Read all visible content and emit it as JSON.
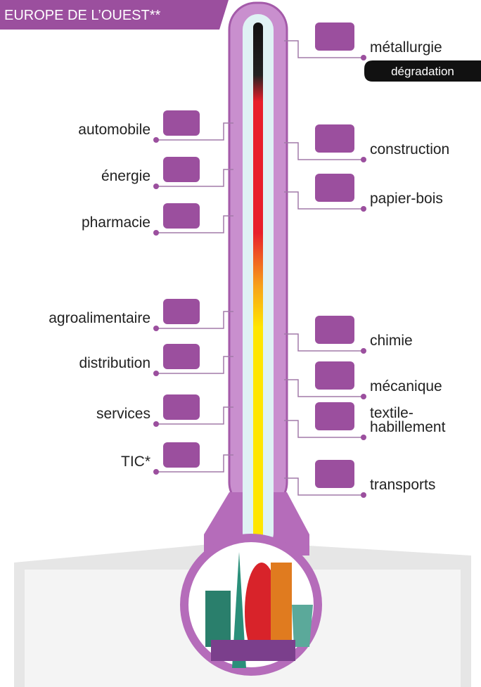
{
  "header": {
    "title": "EUROPE DE L’OUEST**"
  },
  "scale": {
    "label": "dégradation"
  },
  "left_sectors": [
    {
      "lines": [
        "automobile"
      ]
    },
    {
      "lines": [
        "énergie"
      ]
    },
    {
      "lines": [
        "pharmacie"
      ]
    },
    {
      "lines": [
        "agroalimentaire"
      ]
    },
    {
      "lines": [
        "distribution"
      ]
    },
    {
      "lines": [
        "services"
      ]
    },
    {
      "lines": [
        "TIC*"
      ]
    }
  ],
  "right_sectors": [
    {
      "lines": [
        "métallurgie"
      ]
    },
    {
      "lines": [
        "construction"
      ]
    },
    {
      "lines": [
        "papier-bois"
      ]
    },
    {
      "lines": [
        "chimie"
      ]
    },
    {
      "lines": [
        "mécanique"
      ]
    },
    {
      "lines": [
        "textile-",
        "habillement"
      ]
    },
    {
      "lines": [
        "transports"
      ]
    }
  ]
}
